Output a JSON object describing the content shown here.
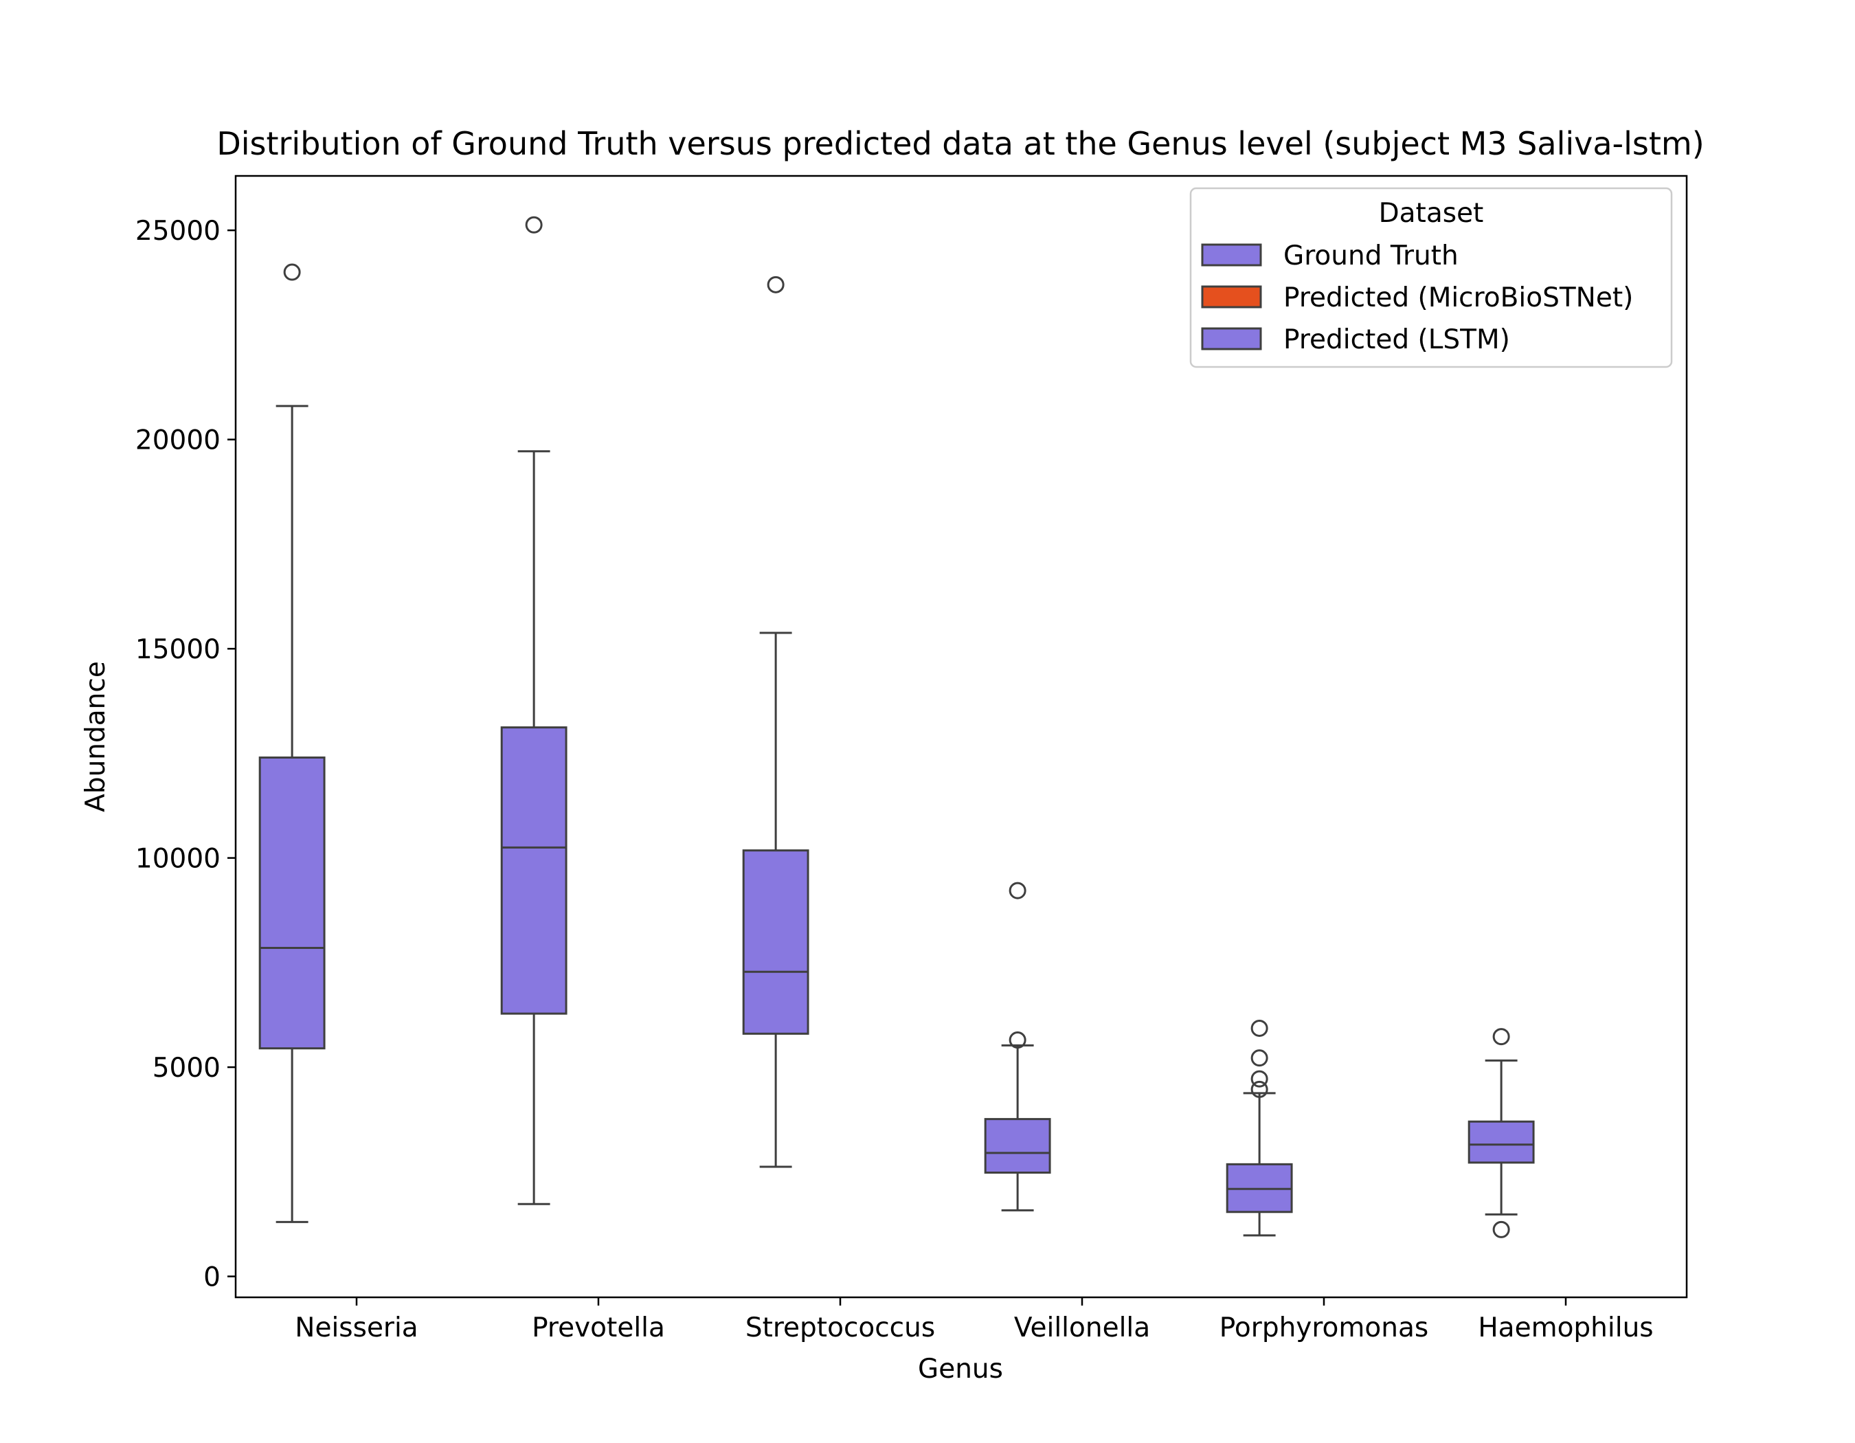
{
  "chart_data": {
    "type": "box",
    "title": "Distribution of Ground Truth versus predicted data at the Genus level (subject M3 Saliva-lstm)",
    "xlabel": "Genus",
    "ylabel": "Abundance",
    "ylim": [
      -500,
      26300
    ],
    "yticks": [
      0,
      5000,
      10000,
      15000,
      20000,
      25000
    ],
    "ytick_labels": [
      "0",
      "5000",
      "10000",
      "15000",
      "20000",
      "25000"
    ],
    "categories": [
      "Neisseria",
      "Prevotella",
      "Streptococcus",
      "Veillonella",
      "Porphyromonas",
      "Haemophilus"
    ],
    "grid": false,
    "legend": {
      "title": "Dataset",
      "position": "top-right",
      "entries": [
        {
          "label": "Ground Truth",
          "color": "#8878E0"
        },
        {
          "label": "Predicted (MicroBioSTNet)",
          "color": "#E5501E"
        },
        {
          "label": "Predicted (LSTM)",
          "color": "#8878E0"
        }
      ]
    },
    "series": [
      {
        "name": "Ground Truth",
        "color": "#8878E0",
        "boxes": [
          {
            "category": "Neisseria",
            "whisker_low": 1300,
            "q1": 5450,
            "median": 7850,
            "q3": 12400,
            "whisker_high": 20800,
            "outliers": [
              24000
            ]
          },
          {
            "category": "Prevotella",
            "whisker_low": 1730,
            "q1": 6280,
            "median": 10250,
            "q3": 13120,
            "whisker_high": 19720,
            "outliers": [
              25130
            ]
          },
          {
            "category": "Streptococcus",
            "whisker_low": 2620,
            "q1": 5800,
            "median": 7280,
            "q3": 10180,
            "whisker_high": 15380,
            "outliers": [
              23700
            ]
          },
          {
            "category": "Veillonella",
            "whisker_low": 1580,
            "q1": 2480,
            "median": 2950,
            "q3": 3760,
            "whisker_high": 5520,
            "outliers": [
              9220,
              5650
            ]
          },
          {
            "category": "Porphyromonas",
            "whisker_low": 980,
            "q1": 1540,
            "median": 2090,
            "q3": 2680,
            "whisker_high": 4380,
            "outliers": [
              5930,
              5220,
              4720,
              4470
            ]
          },
          {
            "category": "Haemophilus",
            "whisker_low": 1480,
            "q1": 2720,
            "median": 3150,
            "q3": 3700,
            "whisker_high": 5160,
            "outliers": [
              5730,
              1120
            ]
          }
        ]
      }
    ]
  }
}
